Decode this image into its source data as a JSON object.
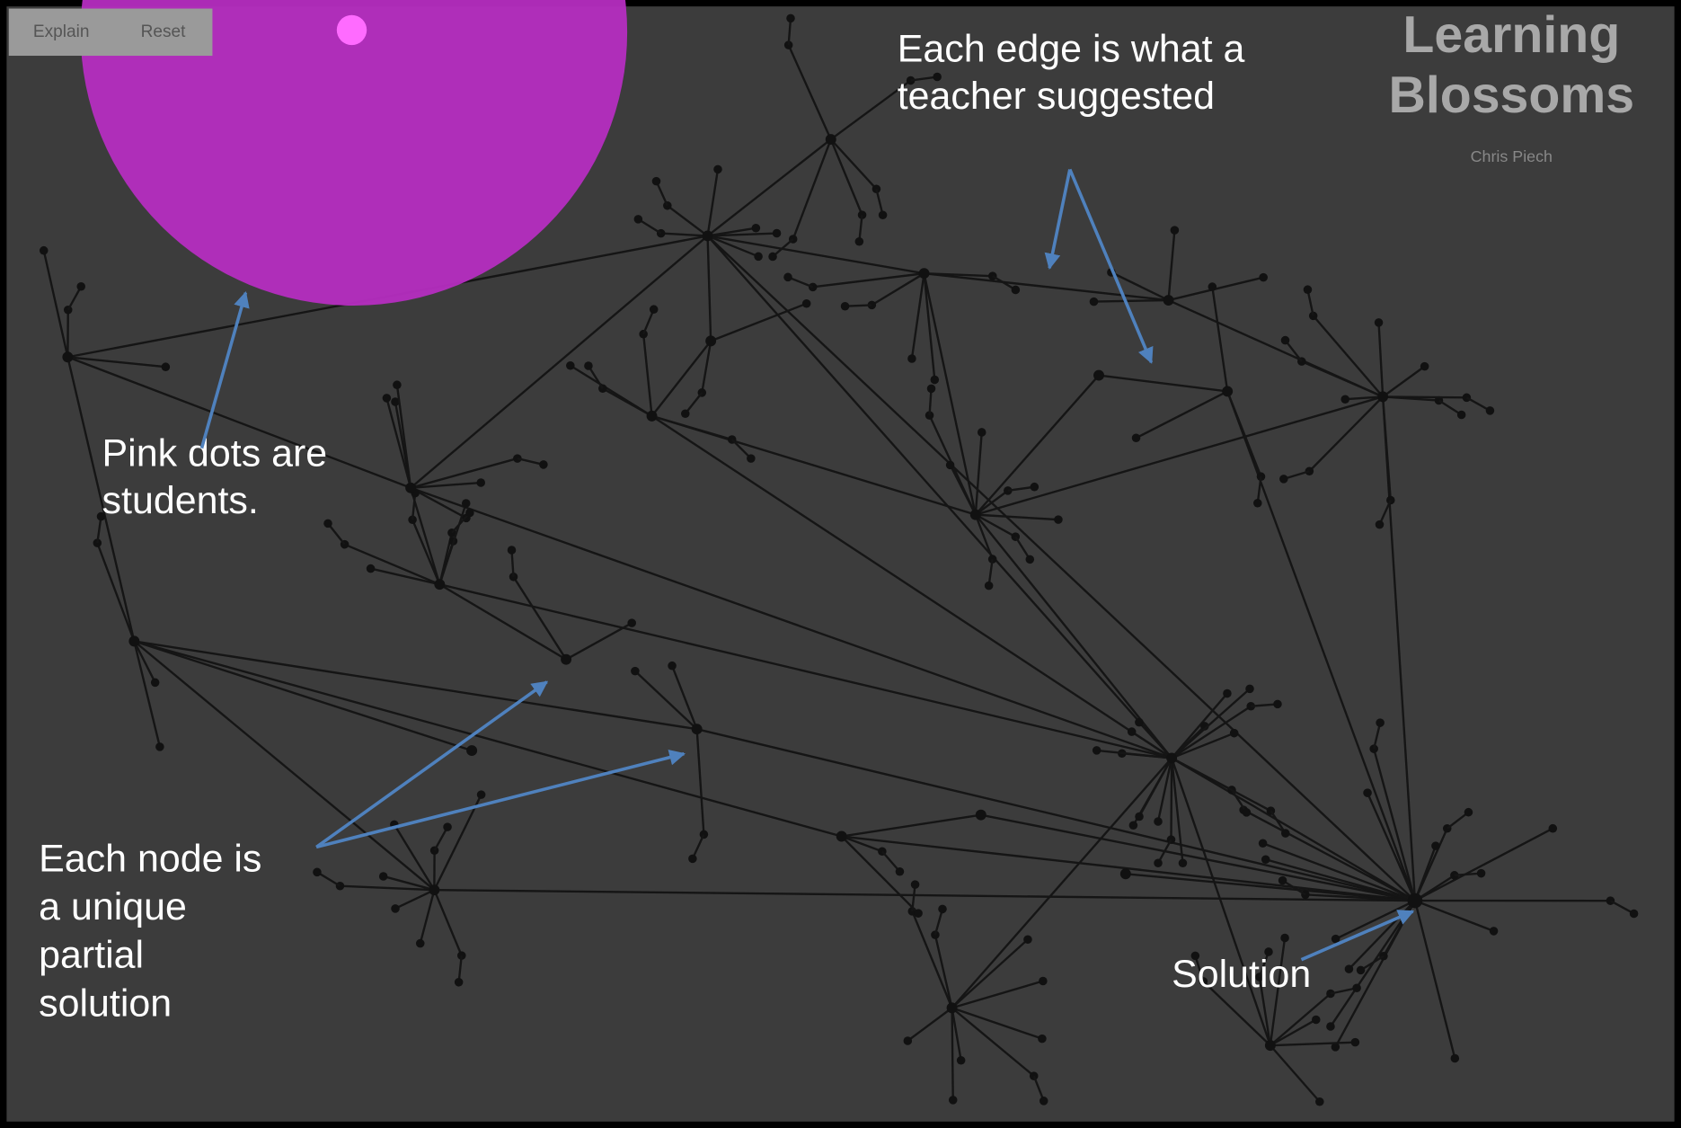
{
  "toolbar": {
    "buttons": [
      "Explain",
      "Reset"
    ]
  },
  "header": {
    "title_lines": [
      "Learning",
      "Blossoms"
    ],
    "author": "Chris Piech"
  },
  "annotations": {
    "edges": [
      "Each edge is what a",
      "teacher suggested"
    ],
    "students": [
      "Pink dots are",
      "students."
    ],
    "nodes": [
      "Each node is",
      "a unique",
      "partial",
      "solution"
    ],
    "solution": "Solution"
  }
}
